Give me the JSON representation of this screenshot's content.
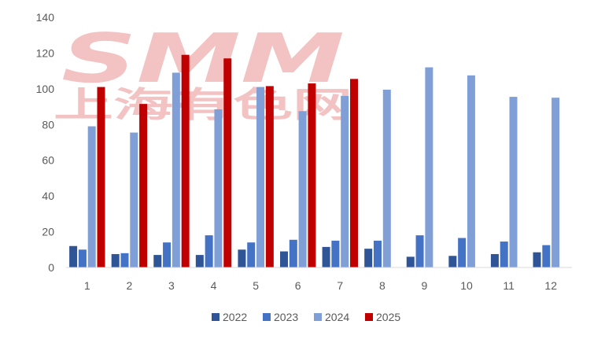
{
  "watermark": {
    "brand": "SMM",
    "subtitle": "上海有色网",
    "color": "#f2b8b8"
  },
  "chart_data": {
    "type": "bar",
    "categories": [
      "1",
      "2",
      "3",
      "4",
      "5",
      "6",
      "7",
      "8",
      "9",
      "10",
      "11",
      "12"
    ],
    "ylim": [
      0,
      140
    ],
    "yticks": [
      0,
      20,
      40,
      60,
      80,
      100,
      120,
      140
    ],
    "grid": false,
    "legend_position": "bottom",
    "series": [
      {
        "name": "2022",
        "color": "#2f5597",
        "values": [
          12,
          7.5,
          7,
          7,
          10,
          9,
          11.5,
          10.5,
          6,
          6.5,
          7.5,
          8.5
        ]
      },
      {
        "name": "2023",
        "color": "#4472c4",
        "values": [
          10,
          8,
          14,
          18,
          14,
          15.5,
          15,
          15,
          18,
          16.5,
          14.5,
          12.5
        ]
      },
      {
        "name": "2024",
        "color": "#7f9fd6",
        "values": [
          79,
          75.5,
          109,
          88.5,
          101,
          87.5,
          96,
          99.5,
          112,
          107.5,
          95.5,
          95
        ]
      },
      {
        "name": "2025",
        "color": "#c00000",
        "values": [
          101,
          91.5,
          119,
          117,
          101.5,
          103,
          105.5,
          null,
          null,
          null,
          null,
          null
        ]
      }
    ]
  }
}
